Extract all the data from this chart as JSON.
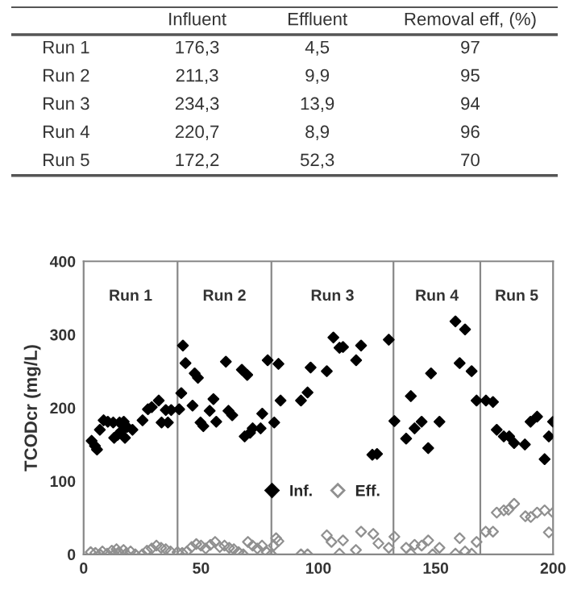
{
  "chart_data": [
    {
      "type": "other",
      "categories": [
        null,
        "Influent",
        "Effluent",
        "Removal eff, (%)"
      ],
      "annotations": [
        "Run 1",
        "176,3",
        "4,5",
        "97",
        "Run 2",
        "211,3",
        "9,9",
        "95",
        "Run 3",
        "234,3",
        "13,9",
        "94",
        "Run 4",
        "220,7",
        "8,9",
        "96",
        "Run 5",
        "172,2",
        "52,3",
        "70"
      ]
    },
    {
      "type": "scatter",
      "ylabel": "TCODcr (mg/L)",
      "xlim": [
        0,
        200
      ],
      "xticks": [
        0,
        50,
        100,
        150,
        200
      ],
      "ylim": [
        0,
        400
      ],
      "yticks": [
        0,
        100,
        200,
        300,
        400
      ],
      "grid": false,
      "legend": "bottom",
      "marker": "diamond",
      "ref_lines": [
        {
          "axis": "x",
          "value": 40
        },
        {
          "axis": "x",
          "value": 80
        },
        {
          "axis": "x",
          "value": 132
        },
        {
          "axis": "x",
          "value": 169
        }
      ],
      "annotations": [
        "Run 1",
        "Run 2",
        "Run 3",
        "Run 4",
        "Run 5"
      ],
      "series": [
        {
          "name": "Inf.",
          "color": "#000000",
          "x": [
            3.4,
            4.8,
            5.7,
            6.9,
            8.5,
            10.3,
            12.6,
            13,
            14.4,
            15.3,
            16,
            17.1,
            17.6,
            18.5,
            20.8,
            25.1,
            27.4,
            29,
            32,
            33.2,
            35,
            35.9,
            37.3,
            40.7,
            41.6,
            42.3,
            43.4,
            46.4,
            47.3,
            48.7,
            49.8,
            51,
            53.7,
            55.3,
            56.5,
            60.6,
            61.7,
            63.3,
            67.4,
            68.6,
            69.7,
            70.9,
            72,
            75.4,
            76.1,
            78.4,
            81.2,
            83,
            83.9,
            92.6,
            95.4,
            96.7,
            103.6,
            106.4,
            109,
            110.5,
            116.1,
            118.2,
            123,
            125,
            130,
            132.4,
            137.4,
            139.4,
            141,
            144,
            146.8,
            148,
            151.6,
            158.4,
            160.2,
            162.5,
            165.3,
            167.4,
            171.4,
            174.4,
            176,
            179,
            181.3,
            183.4,
            188,
            190.4,
            193.2,
            196.4,
            198.2,
            200
          ],
          "values": [
            155,
            148,
            143,
            170,
            183,
            181,
            180,
            159,
            163,
            180,
            168,
            181,
            159,
            174,
            170,
            183,
            198,
            201,
            210,
            180,
            197,
            180,
            197,
            198,
            220,
            285,
            261,
            203,
            247,
            241,
            180,
            175,
            196,
            212,
            181,
            263,
            196,
            190,
            252,
            161,
            245,
            166,
            172,
            172,
            192,
            265,
            180,
            260,
            210,
            210,
            221,
            255,
            250,
            296,
            282,
            283,
            265,
            285,
            136,
            137,
            293,
            182,
            158,
            216,
            172,
            181,
            145,
            247,
            181,
            318,
            261,
            307,
            250,
            210,
            210,
            208,
            170,
            161,
            161,
            152,
            150,
            181,
            188,
            130,
            161,
            181
          ]
        },
        {
          "name": "Eff.",
          "color": "#909090",
          "x": [
            3,
            5,
            7,
            8,
            10,
            12,
            13,
            14,
            15,
            17,
            18,
            20,
            22,
            25,
            27,
            29,
            31,
            33,
            35,
            37,
            40,
            42,
            44,
            46,
            48,
            50,
            52,
            54,
            56,
            58,
            60,
            62,
            64,
            66,
            68,
            70,
            72,
            74,
            76,
            78,
            80,
            81,
            82,
            83,
            92.6,
            95.4,
            103.6,
            105.6,
            109,
            110.5,
            116,
            118.2,
            123.4,
            125.6,
            130,
            132.4,
            137.4,
            139.4,
            141,
            144,
            146.8,
            148.7,
            151.6,
            158.4,
            160.2,
            162.5,
            165.3,
            167.4,
            171.3,
            174.4,
            176,
            179,
            181,
            183.4,
            188.2,
            190.5,
            193.2,
            196.4,
            198.2,
            200
          ],
          "values": [
            3,
            2,
            0,
            4,
            1,
            5,
            0,
            7,
            3,
            6,
            1,
            4,
            0,
            0,
            5,
            8,
            12,
            9,
            7,
            4,
            3,
            2,
            4,
            10,
            14,
            12,
            8,
            13,
            17,
            10,
            12,
            9,
            7,
            3,
            0,
            17,
            12,
            8,
            12,
            3,
            0,
            12,
            22,
            18,
            0,
            0,
            26,
            17,
            1,
            19,
            6,
            31,
            28,
            15,
            9,
            24,
            9,
            1,
            13,
            12,
            19,
            0,
            9,
            1,
            22,
            4,
            1,
            17,
            31,
            31,
            57,
            60,
            61,
            69,
            52,
            51,
            57,
            60,
            30,
            57
          ]
        }
      ]
    }
  ]
}
